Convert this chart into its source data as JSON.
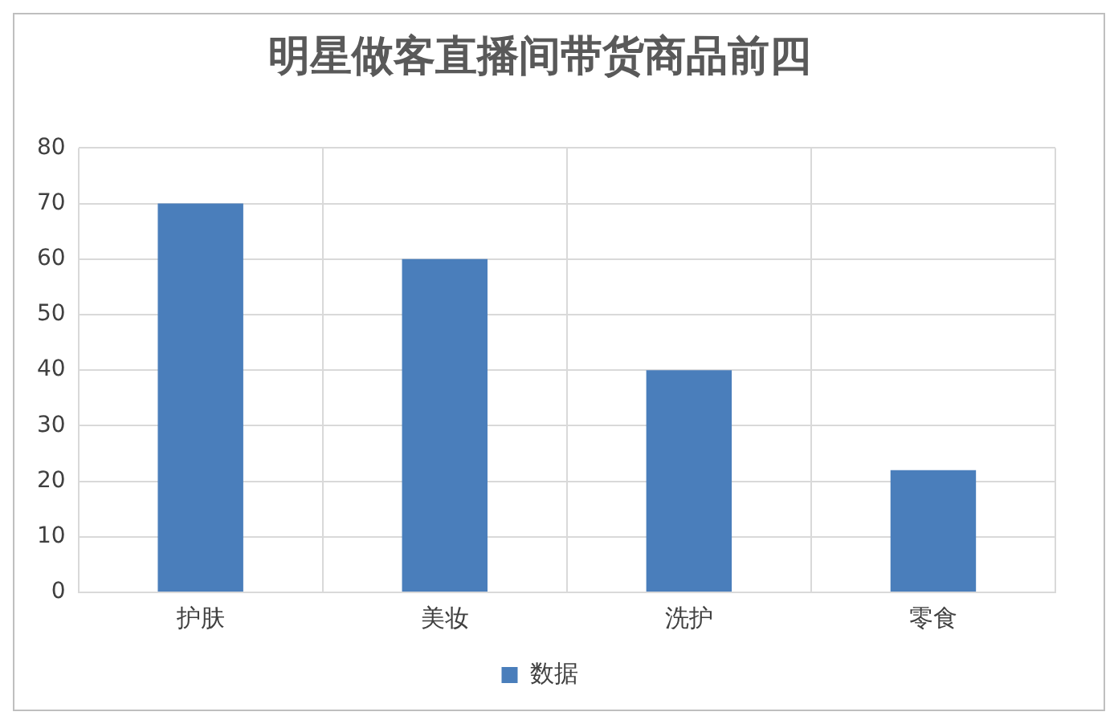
{
  "chart_data": {
    "type": "bar",
    "title": "明星做客直播间带货商品前四",
    "categories": [
      "护肤",
      "美妆",
      "洗护",
      "零食"
    ],
    "series": [
      {
        "name": "数据",
        "color": "#4a7ebb",
        "values": [
          70,
          60,
          40,
          22
        ]
      }
    ],
    "ylim": [
      0,
      80
    ],
    "yticks": [
      0,
      10,
      20,
      30,
      40,
      50,
      60,
      70,
      80
    ],
    "grid": true,
    "legend": "bottom"
  }
}
